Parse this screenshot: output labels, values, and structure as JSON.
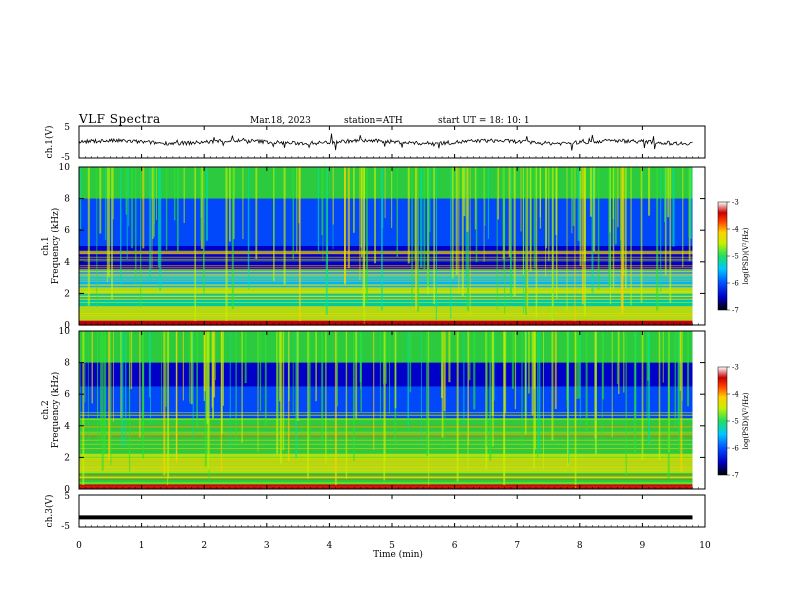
{
  "header": {
    "title": "VLF  Spectra",
    "date": "Mar.18, 2023",
    "station": "station=ATH",
    "start": "start  UT  =    18: 10: 1"
  },
  "chart_data": [
    {
      "type": "line",
      "panel": "ch1-waveform",
      "ylabel": "ch.1(V)",
      "yticks": [
        "5",
        "-5"
      ],
      "ylim": [
        -5,
        5
      ],
      "baseline": 0,
      "note_series": "noisy waveform hovering near 0 V"
    },
    {
      "type": "heatmap",
      "panel": "ch1-spectrogram",
      "ylabel_top": "ch.1",
      "ylabel": "Frequency  (kHz)",
      "yticks": [
        "0",
        "2",
        "4",
        "6",
        "8",
        "10"
      ],
      "ylim": [
        0,
        10
      ],
      "colorbar": {
        "label": "log(PSD)(V²/Hz)",
        "ticks": [
          "-3",
          "-4",
          "-5",
          "-6",
          "-7"
        ],
        "range": [
          -7,
          -3
        ]
      },
      "bands_khz": [
        {
          "from": 0,
          "to": 0.3,
          "level": -3.2
        },
        {
          "from": 0.3,
          "to": 1.2,
          "level": -4.6
        },
        {
          "from": 1.2,
          "to": 2.0,
          "level": -5.3
        },
        {
          "from": 2.0,
          "to": 2.4,
          "level": -4.4
        },
        {
          "from": 2.4,
          "to": 3.5,
          "level": -5.7
        },
        {
          "from": 3.5,
          "to": 5.0,
          "level": -6.7
        },
        {
          "from": 5.0,
          "to": 8.0,
          "level": -6.2
        },
        {
          "from": 8.0,
          "to": 10.0,
          "level": -4.8
        }
      ]
    },
    {
      "type": "heatmap",
      "panel": "ch2-spectrogram",
      "ylabel_top": "ch.2",
      "ylabel": "Frequency  (kHz)",
      "yticks": [
        "0",
        "2",
        "4",
        "6",
        "8",
        "10"
      ],
      "ylim": [
        0,
        10
      ],
      "colorbar": {
        "label": "log(PSD)(V²/Hz)",
        "ticks": [
          "-3",
          "-4",
          "-5",
          "-6",
          "-7"
        ],
        "range": [
          -7,
          -3
        ]
      },
      "bands_khz": [
        {
          "from": 0,
          "to": 0.3,
          "level": -3.2
        },
        {
          "from": 0.3,
          "to": 1.0,
          "level": -4.8
        },
        {
          "from": 1.0,
          "to": 2.2,
          "level": -4.6
        },
        {
          "from": 2.2,
          "to": 4.5,
          "level": -5.2
        },
        {
          "from": 4.5,
          "to": 6.5,
          "level": -6.2
        },
        {
          "from": 6.5,
          "to": 8.0,
          "level": -6.6
        },
        {
          "from": 8.0,
          "to": 10.0,
          "level": -4.9
        }
      ]
    },
    {
      "type": "line",
      "panel": "ch3-waveform",
      "ylabel": "ch.3(V)",
      "yticks": [
        "5",
        "-5"
      ],
      "ylim": [
        -5,
        5
      ],
      "baseline": -2,
      "xlabel": "Time  (min)",
      "xticks": [
        "0",
        "1",
        "2",
        "3",
        "4",
        "5",
        "6",
        "7",
        "8",
        "9",
        "10"
      ],
      "xlim": [
        0,
        10
      ],
      "data_end_min": 9.8
    }
  ],
  "colors": {
    "scale": [
      "#000000",
      "#0000c8",
      "#0050ff",
      "#00c8ff",
      "#00e0a0",
      "#30e030",
      "#c8f000",
      "#ffd000",
      "#ff5000",
      "#c80000",
      "#ffffff"
    ]
  }
}
